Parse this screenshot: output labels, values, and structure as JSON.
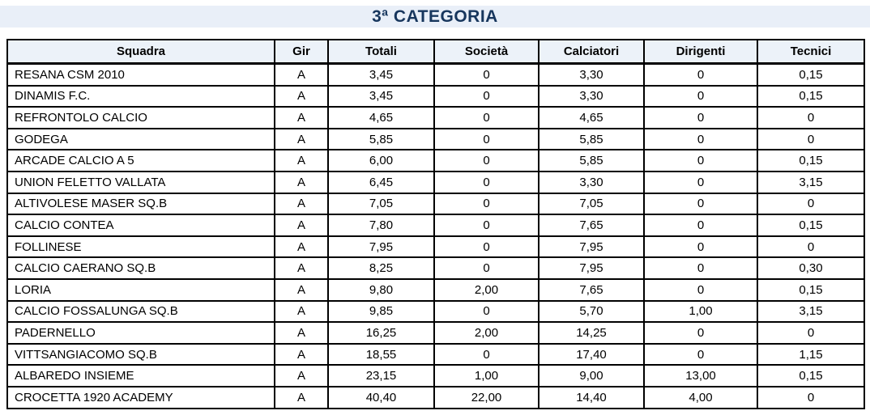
{
  "title": "3ª CATEGORIA",
  "colors": {
    "title_text": "#17365D",
    "banner_bg": "#E9EFF8",
    "header_bg": "#ECF2F9",
    "border": "#000000"
  },
  "table": {
    "columns": [
      "Squadra",
      "Gir",
      "Totali",
      "Società",
      "Calciatori",
      "Dirigenti",
      "Tecnici"
    ],
    "rows": [
      [
        "RESANA CSM 2010",
        "A",
        "3,45",
        "0",
        "3,30",
        "0",
        "0,15"
      ],
      [
        "DINAMIS F.C.",
        "A",
        "3,45",
        "0",
        "3,30",
        "0",
        "0,15"
      ],
      [
        "REFRONTOLO CALCIO",
        "A",
        "4,65",
        "0",
        "4,65",
        "0",
        "0"
      ],
      [
        "GODEGA",
        "A",
        "5,85",
        "0",
        "5,85",
        "0",
        "0"
      ],
      [
        "ARCADE CALCIO A 5",
        "A",
        "6,00",
        "0",
        "5,85",
        "0",
        "0,15"
      ],
      [
        "UNION FELETTO VALLATA",
        "A",
        "6,45",
        "0",
        "3,30",
        "0",
        "3,15"
      ],
      [
        "ALTIVOLESE MASER SQ.B",
        "A",
        "7,05",
        "0",
        "7,05",
        "0",
        "0"
      ],
      [
        "CALCIO CONTEA",
        "A",
        "7,80",
        "0",
        "7,65",
        "0",
        "0,15"
      ],
      [
        "FOLLINESE",
        "A",
        "7,95",
        "0",
        "7,95",
        "0",
        "0"
      ],
      [
        "CALCIO CAERANO SQ.B",
        "A",
        "8,25",
        "0",
        "7,95",
        "0",
        "0,30"
      ],
      [
        "LORIA",
        "A",
        "9,80",
        "2,00",
        "7,65",
        "0",
        "0,15"
      ],
      [
        "CALCIO FOSSALUNGA SQ.B",
        "A",
        "9,85",
        "0",
        "5,70",
        "1,00",
        "3,15"
      ],
      [
        "PADERNELLO",
        "A",
        "16,25",
        "2,00",
        "14,25",
        "0",
        "0"
      ],
      [
        "VITTSANGIACOMO SQ.B",
        "A",
        "18,55",
        "0",
        "17,40",
        "0",
        "1,15"
      ],
      [
        "ALBAREDO INSIEME",
        "A",
        "23,15",
        "1,00",
        "9,00",
        "13,00",
        "0,15"
      ],
      [
        "CROCETTA 1920 ACADEMY",
        "A",
        "40,40",
        "22,00",
        "14,40",
        "4,00",
        "0"
      ]
    ]
  }
}
